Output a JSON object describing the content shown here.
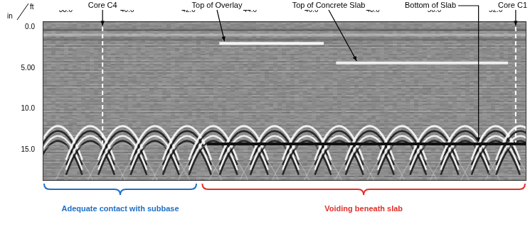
{
  "chart_data": {
    "type": "radargram",
    "x_label": "ft",
    "y_label": "in",
    "xlim": [
      37.25,
      53.0
    ],
    "ylim": [
      -0.7,
      18.8
    ],
    "xticks": [
      {
        "value": 38,
        "label": "38.0"
      },
      {
        "value": 40,
        "label": "40.0"
      },
      {
        "value": 42,
        "label": "42.0"
      },
      {
        "value": 44,
        "label": "44.0"
      },
      {
        "value": 46,
        "label": "46.0"
      },
      {
        "value": 48,
        "label": "48.0"
      },
      {
        "value": 50,
        "label": "50.0"
      },
      {
        "value": 52,
        "label": "52.0"
      }
    ],
    "yticks": [
      {
        "value": 0,
        "label": "0.0"
      },
      {
        "value": 5,
        "label": "5.00"
      },
      {
        "value": 10,
        "label": "10.0"
      },
      {
        "value": 15,
        "label": "15.0"
      }
    ],
    "grid": false,
    "cores": [
      {
        "name": "Core C4",
        "x": 39.2,
        "depth": [
          0,
          14.2
        ],
        "color": "#ffffff",
        "line_style": "dashed"
      },
      {
        "name": "Core C1",
        "x": 52.65,
        "depth": [
          0,
          14.5
        ],
        "color": "#ffffff",
        "line_style": "dashed"
      }
    ],
    "reflectors": [
      {
        "name": "Top of Overlay",
        "x": [
          43.0,
          46.4
        ],
        "depth": 2.0,
        "color": "#f4f4f4"
      },
      {
        "name": "Top of Concrete Slab",
        "x": [
          46.8,
          52.4
        ],
        "depth": 4.4,
        "color": "#eeeeee"
      },
      {
        "name": "Bottom of Slab",
        "x": [
          42.6,
          53.0
        ],
        "depth": 14.3,
        "color": "#111111"
      }
    ],
    "rebar": {
      "x": [
        37.75,
        38.8,
        39.85,
        40.9,
        41.95,
        42.8,
        43.8,
        44.8,
        45.85,
        46.9,
        47.9,
        48.95,
        50.0,
        51.0,
        52.0,
        52.8
      ],
      "depth": 12.1
    },
    "zones": [
      {
        "name": "Adequate contact with subbase",
        "range": [
          37.25,
          42.3
        ],
        "color": "#1f6fc4"
      },
      {
        "name": "Voiding beneath slab",
        "range": [
          42.4,
          53.0
        ],
        "color": "#e0302a"
      }
    ]
  }
}
